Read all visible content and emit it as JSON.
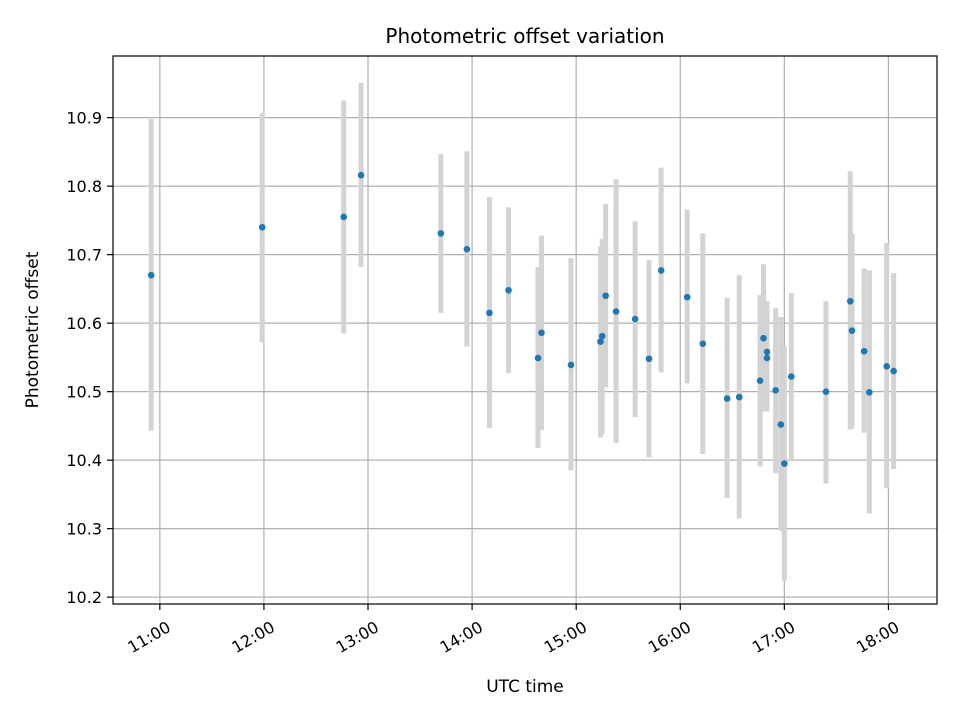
{
  "chart_data": {
    "type": "scatter",
    "title": "Photometric offset variation",
    "xlabel": "UTC time",
    "ylabel": "Photometric offset",
    "x_unit": "hours UTC",
    "xlim": [
      "10:33",
      "18:28"
    ],
    "ylim": [
      10.19,
      10.99
    ],
    "x_ticks": [
      "11:00",
      "12:00",
      "13:00",
      "14:00",
      "15:00",
      "16:00",
      "17:00",
      "18:00"
    ],
    "y_ticks": [
      "10.2",
      "10.3",
      "10.4",
      "10.5",
      "10.6",
      "10.7",
      "10.8",
      "10.9"
    ],
    "grid": true,
    "marker_color": "#1f77b4",
    "errorbar_color": "#d3d3d3",
    "points": [
      {
        "time": "10:55",
        "y": 10.67,
        "ylo": 10.443,
        "yhi": 10.898
      },
      {
        "time": "11:59",
        "y": 10.74,
        "ylo": 10.572,
        "yhi": 10.907
      },
      {
        "time": "12:46",
        "y": 10.755,
        "ylo": 10.585,
        "yhi": 10.925
      },
      {
        "time": "12:56",
        "y": 10.816,
        "ylo": 10.682,
        "yhi": 10.951
      },
      {
        "time": "13:42",
        "y": 10.731,
        "ylo": 10.615,
        "yhi": 10.847
      },
      {
        "time": "13:57",
        "y": 10.708,
        "ylo": 10.566,
        "yhi": 10.851
      },
      {
        "time": "14:10",
        "y": 10.615,
        "ylo": 10.447,
        "yhi": 10.784
      },
      {
        "time": "14:21",
        "y": 10.648,
        "ylo": 10.527,
        "yhi": 10.769
      },
      {
        "time": "14:38",
        "y": 10.549,
        "ylo": 10.418,
        "yhi": 10.682
      },
      {
        "time": "14:40",
        "y": 10.586,
        "ylo": 10.444,
        "yhi": 10.728
      },
      {
        "time": "14:57",
        "y": 10.539,
        "ylo": 10.385,
        "yhi": 10.695
      },
      {
        "time": "15:14",
        "y": 10.573,
        "ylo": 10.433,
        "yhi": 10.712
      },
      {
        "time": "15:15",
        "y": 10.581,
        "ylo": 10.438,
        "yhi": 10.723
      },
      {
        "time": "15:17",
        "y": 10.64,
        "ylo": 10.506,
        "yhi": 10.774
      },
      {
        "time": "15:23",
        "y": 10.617,
        "ylo": 10.425,
        "yhi": 10.81
      },
      {
        "time": "15:34",
        "y": 10.606,
        "ylo": 10.463,
        "yhi": 10.749
      },
      {
        "time": "15:42",
        "y": 10.548,
        "ylo": 10.404,
        "yhi": 10.692
      },
      {
        "time": "15:49",
        "y": 10.677,
        "ylo": 10.528,
        "yhi": 10.827
      },
      {
        "time": "16:04",
        "y": 10.638,
        "ylo": 10.512,
        "yhi": 10.766
      },
      {
        "time": "16:13",
        "y": 10.57,
        "ylo": 10.409,
        "yhi": 10.731
      },
      {
        "time": "16:27",
        "y": 10.49,
        "ylo": 10.345,
        "yhi": 10.637
      },
      {
        "time": "16:34",
        "y": 10.492,
        "ylo": 10.315,
        "yhi": 10.67
      },
      {
        "time": "16:46",
        "y": 10.516,
        "ylo": 10.391,
        "yhi": 10.641
      },
      {
        "time": "16:48",
        "y": 10.578,
        "ylo": 10.471,
        "yhi": 10.686
      },
      {
        "time": "16:50",
        "y": 10.558,
        "ylo": 10.471,
        "yhi": 10.632
      },
      {
        "time": "16:50",
        "y": 10.549,
        "ylo": 10.471,
        "yhi": 10.632
      },
      {
        "time": "16:55",
        "y": 10.502,
        "ylo": 10.381,
        "yhi": 10.622
      },
      {
        "time": "16:58",
        "y": 10.452,
        "ylo": 10.297,
        "yhi": 10.609
      },
      {
        "time": "17:00",
        "y": 10.395,
        "ylo": 10.224,
        "yhi": 10.566
      },
      {
        "time": "17:04",
        "y": 10.522,
        "ylo": 10.4,
        "yhi": 10.644
      },
      {
        "time": "17:24",
        "y": 10.5,
        "ylo": 10.366,
        "yhi": 10.632
      },
      {
        "time": "17:38",
        "y": 10.632,
        "ylo": 10.445,
        "yhi": 10.822
      },
      {
        "time": "17:39",
        "y": 10.589,
        "ylo": 10.446,
        "yhi": 10.731
      },
      {
        "time": "17:46",
        "y": 10.559,
        "ylo": 10.44,
        "yhi": 10.68
      },
      {
        "time": "17:49",
        "y": 10.499,
        "ylo": 10.322,
        "yhi": 10.677
      },
      {
        "time": "17:59",
        "y": 10.537,
        "ylo": 10.359,
        "yhi": 10.717
      },
      {
        "time": "18:03",
        "y": 10.53,
        "ylo": 10.387,
        "yhi": 10.673
      }
    ]
  }
}
